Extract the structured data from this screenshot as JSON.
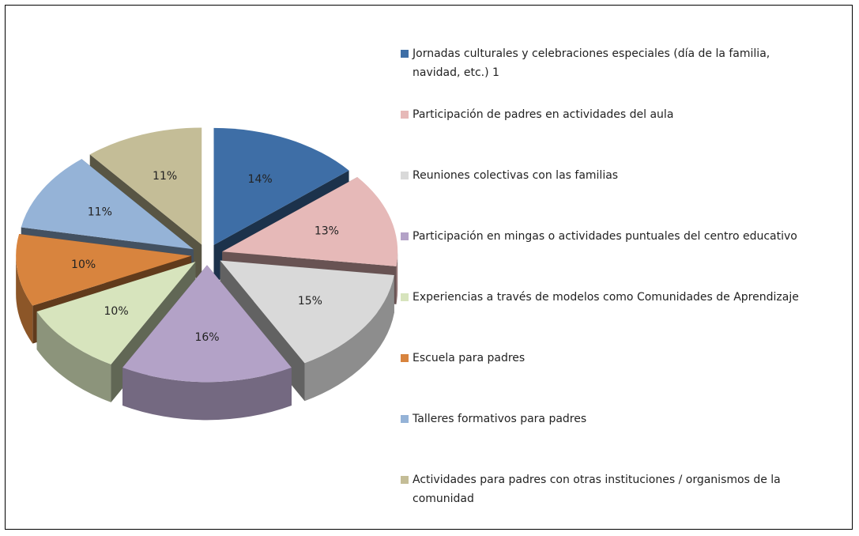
{
  "chart_data": {
    "type": "pie",
    "categories": [
      "Jornadas culturales y celebraciones especiales (día de la familia, navidad, etc.) 1",
      "Participación de padres en actividades del aula",
      "Reuniones colectivas con las familias",
      "Participación en mingas  o actividades puntuales del centro educativo",
      "Experiencias a través de modelos como Comunidades de Aprendizaje",
      "Escuela para padres",
      "Talleres formativos  para padres",
      "Actividades para padres con otras instituciones / organismos  de la comunidad"
    ],
    "values": [
      14,
      13,
      15,
      16,
      10,
      10,
      11,
      11
    ],
    "value_labels": [
      "14%",
      "13%",
      "15%",
      "16%",
      "10%",
      "10%",
      "11%",
      "11%"
    ],
    "colors": [
      "#3e6ea6",
      "#e6b9b8",
      "#d9d9d9",
      "#b3a2c7",
      "#d7e4bd",
      "#d8843e",
      "#95b3d7",
      "#c4bd97"
    ],
    "legend": "right"
  }
}
